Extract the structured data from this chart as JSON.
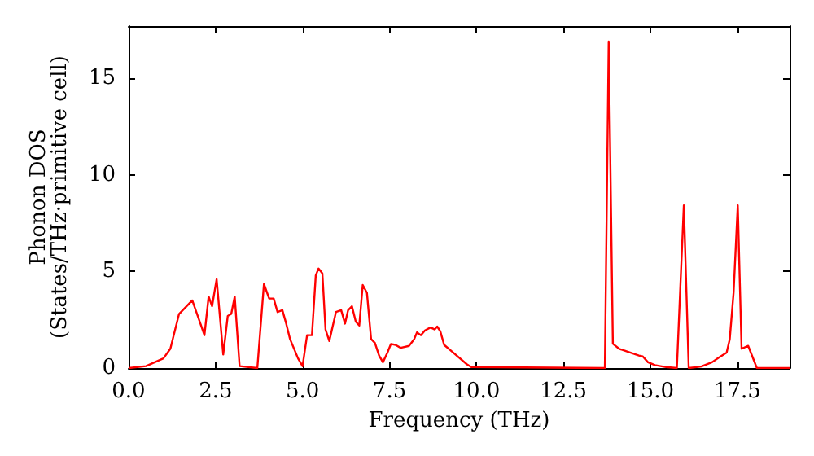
{
  "chart_data": {
    "type": "line",
    "xlabel": "Frequency (THz)",
    "ylabel": "Phonon DOS\n(States/THz·primitive cell)",
    "x": [
      0,
      0.5,
      1.0,
      1.2,
      1.45,
      1.83,
      2.18,
      2.3,
      2.4,
      2.53,
      2.72,
      2.85,
      2.95,
      3.05,
      3.19,
      3.7,
      3.89,
      4.04,
      4.17,
      4.28,
      4.42,
      4.53,
      4.64,
      4.87,
      5.0,
      5.13,
      5.27,
      5.38,
      5.46,
      5.57,
      5.66,
      5.77,
      5.96,
      6.11,
      6.22,
      6.31,
      6.42,
      6.53,
      6.63,
      6.73,
      6.85,
      6.97,
      7.08,
      7.2,
      7.31,
      7.44,
      7.54,
      7.67,
      7.82,
      8.06,
      8.21,
      8.29,
      8.4,
      8.52,
      8.68,
      8.8,
      8.87,
      8.96,
      9.07,
      9.3,
      9.72,
      9.85,
      13.69,
      13.8,
      13.92,
      14.1,
      14.67,
      14.78,
      14.93,
      15.13,
      15.45,
      15.76,
      15.96,
      16.1,
      16.46,
      16.77,
      16.97,
      17.19,
      17.28,
      17.39,
      17.51,
      17.62,
      17.81,
      18.06,
      19.0
    ],
    "series": [
      {
        "color": "#ff0000",
        "values": [
          0,
          0.1,
          0.5,
          1.0,
          2.8,
          3.5,
          1.7,
          3.7,
          3.2,
          4.6,
          0.7,
          2.7,
          2.8,
          3.7,
          0.1,
          0,
          4.35,
          3.6,
          3.6,
          2.9,
          3.0,
          2.3,
          1.5,
          0.5,
          0.1,
          1.7,
          1.7,
          4.8,
          5.15,
          4.9,
          2.0,
          1.4,
          2.9,
          3.0,
          2.3,
          3.0,
          3.2,
          2.4,
          2.2,
          4.3,
          3.9,
          1.5,
          1.3,
          0.65,
          0.3,
          0.8,
          1.25,
          1.2,
          1.05,
          1.15,
          1.5,
          1.85,
          1.7,
          1.95,
          2.1,
          2.0,
          2.15,
          1.9,
          1.2,
          0.85,
          0.2,
          0.05,
          0,
          16.9,
          1.26,
          1.0,
          0.65,
          0.6,
          0.3,
          0.15,
          0.05,
          0,
          8.42,
          0,
          0.08,
          0.3,
          0.55,
          0.8,
          1.5,
          3.9,
          8.42,
          1.0,
          1.15,
          0,
          0
        ]
      }
    ],
    "xlim": [
      0,
      19.0
    ],
    "xticks": [
      {
        "value": 0,
        "label": "0.0"
      },
      2.5,
      {
        "value": 5,
        "label": "5.0"
      },
      7.5,
      {
        "value": 10,
        "label": "10.0"
      },
      12.5,
      {
        "value": 15,
        "label": "15.0"
      },
      17.5
    ],
    "ylim": [
      0,
      17.7
    ],
    "yticks": [
      0,
      5,
      10,
      15
    ],
    "grid": false,
    "marker": "none",
    "line_style": "solid"
  }
}
